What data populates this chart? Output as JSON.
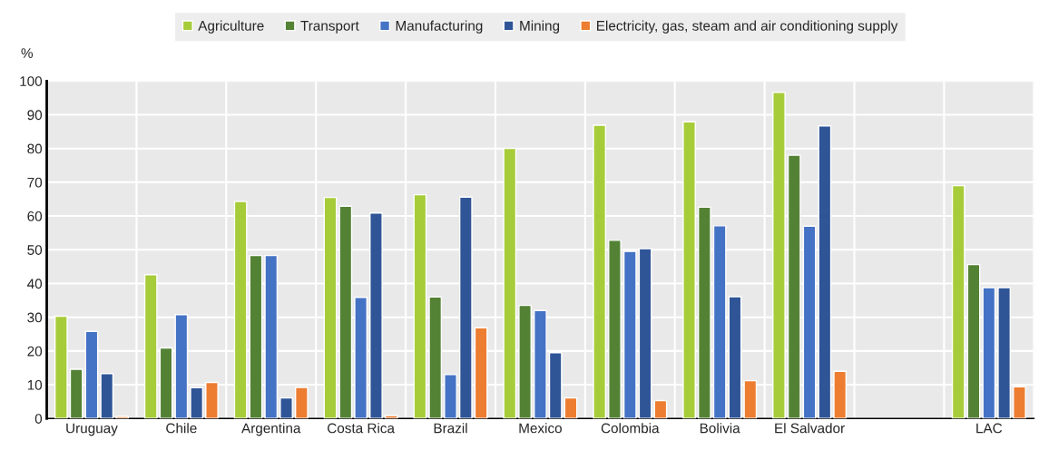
{
  "chart_data": {
    "type": "bar",
    "ylabel": "%",
    "categories": [
      "Uruguay",
      "Chile",
      "Argentina",
      "Costa Rica",
      "Brazil",
      "Mexico",
      "Colombia",
      "Bolivia",
      "El Salvador",
      null,
      "LAC"
    ],
    "series": [
      {
        "name": "Agriculture",
        "color": "#a7cc3a",
        "values": [
          30.3,
          42.6,
          64.3,
          65.5,
          66.3,
          80,
          86.9,
          87.9,
          96.6,
          null,
          69
        ]
      },
      {
        "name": "Transport",
        "color": "#548235",
        "values": [
          14.6,
          20.9,
          48.3,
          62.9,
          36,
          33.5,
          52.8,
          62.6,
          78,
          null,
          45.6
        ]
      },
      {
        "name": "Manufacturing",
        "color": "#4472c4",
        "values": [
          25.8,
          30.8,
          48.3,
          35.9,
          13,
          32,
          49.5,
          57.1,
          57,
          null,
          38.8
        ]
      },
      {
        "name": "Mining",
        "color": "#2f5597",
        "values": [
          13.3,
          9.1,
          6.1,
          60.9,
          65.6,
          19.5,
          50.3,
          36.1,
          86.7,
          null,
          38.8
        ]
      },
      {
        "name": "Electricity, gas, steam and air conditioning supply",
        "color": "#ed7d31",
        "values": [
          0.6,
          10.7,
          9.2,
          0.9,
          26.9,
          6.1,
          5.3,
          11.2,
          14,
          null,
          9.4
        ]
      }
    ],
    "ylim": [
      0,
      100
    ],
    "yticks": [
      0,
      10,
      20,
      30,
      40,
      50,
      60,
      70,
      80,
      90,
      100
    ],
    "grid": true,
    "legend": "top"
  }
}
